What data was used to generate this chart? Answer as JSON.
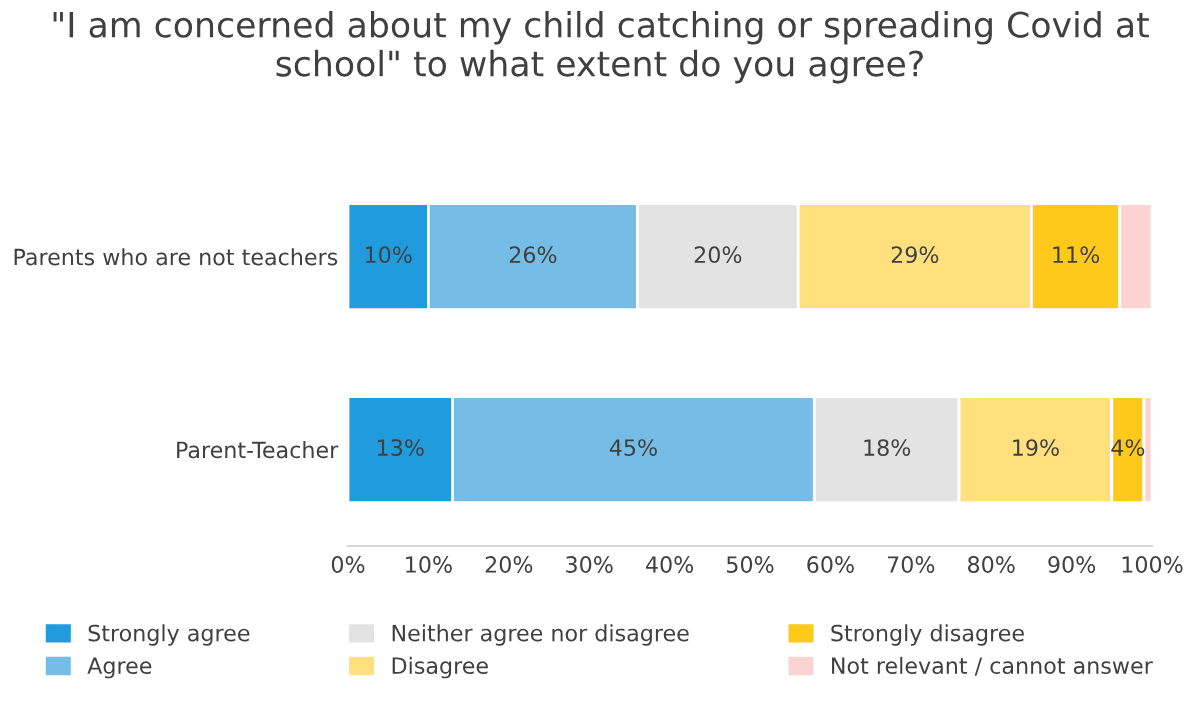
{
  "chart_data": {
    "type": "bar",
    "orientation": "horizontal",
    "stacked": true,
    "title": "\"I am concerned about my child catching or spreading Covid at school\" to what extent do you agree?",
    "categories": [
      "Parents who are not teachers",
      "Parent-Teacher"
    ],
    "series": [
      {
        "name": "Strongly agree",
        "color": "#1f9bde",
        "values": [
          10,
          13
        ],
        "value_labels": [
          "10%",
          "13%"
        ]
      },
      {
        "name": "Agree",
        "color": "#75bde6",
        "values": [
          26,
          45
        ],
        "value_labels": [
          "26%",
          "45%"
        ]
      },
      {
        "name": "Neither agree nor disagree",
        "color": "#e3e3e3",
        "values": [
          20,
          18
        ],
        "value_labels": [
          "20%",
          "18%"
        ]
      },
      {
        "name": "Disagree",
        "color": "#ffe07d",
        "values": [
          29,
          19
        ],
        "value_labels": [
          "29%",
          "19%"
        ]
      },
      {
        "name": "Strongly disagree",
        "color": "#ffc91c",
        "values": [
          11,
          4
        ],
        "value_labels": [
          "11%",
          "4%"
        ]
      },
      {
        "name": "Not relevant / cannot answer",
        "color": "#fcd3d3",
        "values": [
          4,
          1
        ],
        "value_labels": [
          null,
          null
        ]
      }
    ],
    "xlim": [
      0,
      100
    ],
    "xticks": [
      {
        "value": 0,
        "label": "0%"
      },
      {
        "value": 10,
        "label": "10%"
      },
      {
        "value": 20,
        "label": "20%"
      },
      {
        "value": 30,
        "label": "30%"
      },
      {
        "value": 40,
        "label": "40%"
      },
      {
        "value": 50,
        "label": "50%"
      },
      {
        "value": 60,
        "label": "60%"
      },
      {
        "value": 70,
        "label": "70%"
      },
      {
        "value": 80,
        "label": "80%"
      },
      {
        "value": 90,
        "label": "90%"
      },
      {
        "value": 100,
        "label": "100%"
      }
    ],
    "grid": false,
    "legend": "bottom"
  }
}
